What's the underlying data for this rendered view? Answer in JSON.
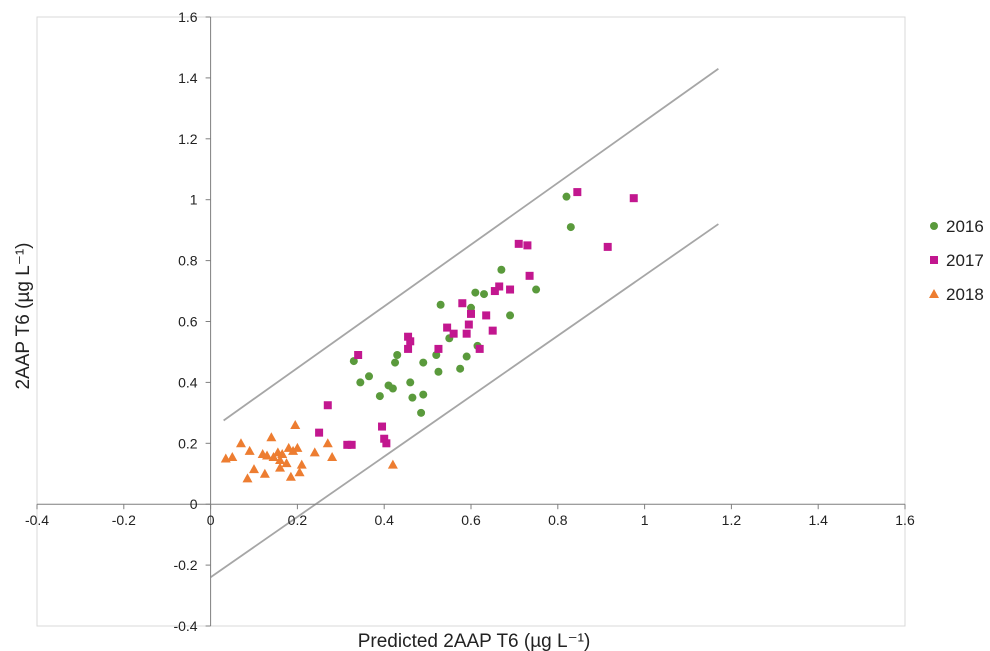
{
  "chart_data": {
    "type": "scatter",
    "title": "",
    "xlabel": "Predicted 2AAP T6 (µg L⁻¹)",
    "ylabel": "2AAP T6 (µg L⁻¹)",
    "xlim": [
      -0.4,
      1.6
    ],
    "ylim": [
      -0.4,
      1.6
    ],
    "x_ticks": [
      "-0.4",
      "-0.2",
      "0",
      "0.2",
      "0.4",
      "0.6",
      "0.8",
      "1",
      "1.2",
      "1.4",
      "1.6"
    ],
    "y_ticks": [
      "-0.4",
      "-0.2",
      "0",
      "0.2",
      "0.4",
      "0.6",
      "0.8",
      "1",
      "1.2",
      "1.4",
      "1.6"
    ],
    "grid": false,
    "legend_position": "right",
    "reference_lines": [
      {
        "x": [
          0.03,
          1.17
        ],
        "y": [
          0.275,
          1.43
        ],
        "color": "#a6a6a6"
      },
      {
        "x": [
          0.0,
          1.17
        ],
        "y": [
          -0.24,
          0.92
        ],
        "color": "#a6a6a6"
      }
    ],
    "series": [
      {
        "name": "2016",
        "marker": "circle",
        "color": "#5a9a3c",
        "x": [
          0.33,
          0.345,
          0.365,
          0.39,
          0.41,
          0.42,
          0.43,
          0.425,
          0.46,
          0.465,
          0.485,
          0.49,
          0.49,
          0.52,
          0.525,
          0.53,
          0.55,
          0.575,
          0.59,
          0.6,
          0.61,
          0.615,
          0.63,
          0.67,
          0.69,
          0.75,
          0.82,
          0.83
        ],
        "y": [
          0.47,
          0.4,
          0.42,
          0.355,
          0.39,
          0.38,
          0.49,
          0.465,
          0.4,
          0.35,
          0.3,
          0.36,
          0.465,
          0.49,
          0.435,
          0.655,
          0.545,
          0.445,
          0.485,
          0.645,
          0.695,
          0.52,
          0.69,
          0.77,
          0.62,
          0.705,
          1.01,
          0.91
        ]
      },
      {
        "name": "2017",
        "marker": "square",
        "color": "#c2178f",
        "x": [
          0.25,
          0.27,
          0.315,
          0.325,
          0.34,
          0.395,
          0.4,
          0.405,
          0.455,
          0.455,
          0.46,
          0.525,
          0.545,
          0.56,
          0.58,
          0.59,
          0.595,
          0.6,
          0.62,
          0.635,
          0.65,
          0.655,
          0.665,
          0.69,
          0.71,
          0.73,
          0.735,
          0.845,
          0.915,
          0.975
        ],
        "y": [
          0.235,
          0.325,
          0.195,
          0.195,
          0.49,
          0.255,
          0.215,
          0.2,
          0.51,
          0.55,
          0.535,
          0.51,
          0.58,
          0.56,
          0.66,
          0.56,
          0.59,
          0.625,
          0.51,
          0.62,
          0.57,
          0.7,
          0.715,
          0.705,
          0.855,
          0.85,
          0.75,
          1.025,
          0.845,
          1.005
        ]
      },
      {
        "name": "2018",
        "marker": "triangle",
        "color": "#ed7d31",
        "x": [
          0.035,
          0.05,
          0.07,
          0.085,
          0.09,
          0.1,
          0.12,
          0.125,
          0.13,
          0.14,
          0.145,
          0.155,
          0.16,
          0.16,
          0.165,
          0.175,
          0.18,
          0.185,
          0.19,
          0.195,
          0.2,
          0.205,
          0.21,
          0.24,
          0.27,
          0.28,
          0.42
        ],
        "y": [
          0.15,
          0.155,
          0.2,
          0.085,
          0.175,
          0.115,
          0.165,
          0.1,
          0.16,
          0.22,
          0.155,
          0.17,
          0.12,
          0.145,
          0.165,
          0.135,
          0.185,
          0.09,
          0.175,
          0.26,
          0.185,
          0.105,
          0.13,
          0.17,
          0.2,
          0.155,
          0.13
        ]
      }
    ]
  }
}
